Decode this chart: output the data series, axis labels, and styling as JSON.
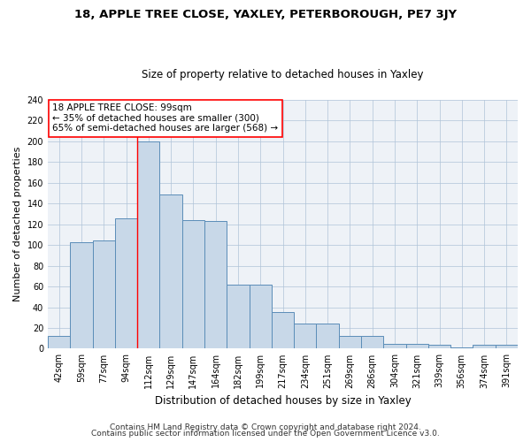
{
  "title": "18, APPLE TREE CLOSE, YAXLEY, PETERBOROUGH, PE7 3JY",
  "subtitle": "Size of property relative to detached houses in Yaxley",
  "xlabel": "Distribution of detached houses by size in Yaxley",
  "ylabel": "Number of detached properties",
  "categories": [
    "42sqm",
    "59sqm",
    "77sqm",
    "94sqm",
    "112sqm",
    "129sqm",
    "147sqm",
    "164sqm",
    "182sqm",
    "199sqm",
    "217sqm",
    "234sqm",
    "251sqm",
    "269sqm",
    "286sqm",
    "304sqm",
    "321sqm",
    "339sqm",
    "356sqm",
    "374sqm",
    "391sqm"
  ],
  "values": [
    12,
    103,
    104,
    126,
    200,
    149,
    124,
    123,
    62,
    62,
    35,
    24,
    24,
    12,
    12,
    5,
    5,
    4,
    1,
    4,
    4
  ],
  "bar_color": "#c8d8e8",
  "bar_edge_color": "#5b8db8",
  "red_line_x": 3.5,
  "ylim": [
    0,
    240
  ],
  "yticks": [
    0,
    20,
    40,
    60,
    80,
    100,
    120,
    140,
    160,
    180,
    200,
    220,
    240
  ],
  "annotation_box_text": "18 APPLE TREE CLOSE: 99sqm\n← 35% of detached houses are smaller (300)\n65% of semi-detached houses are larger (568) →",
  "footer_line1": "Contains HM Land Registry data © Crown copyright and database right 2024.",
  "footer_line2": "Contains public sector information licensed under the Open Government Licence v3.0.",
  "fig_bg_color": "#ffffff",
  "ax_bg_color": "#eef2f7",
  "grid_color": "#b0c4d8",
  "title_fontsize": 9.5,
  "subtitle_fontsize": 8.5,
  "ylabel_fontsize": 8,
  "xlabel_fontsize": 8.5,
  "tick_fontsize": 7,
  "footer_fontsize": 6.5,
  "ann_fontsize": 7.5
}
